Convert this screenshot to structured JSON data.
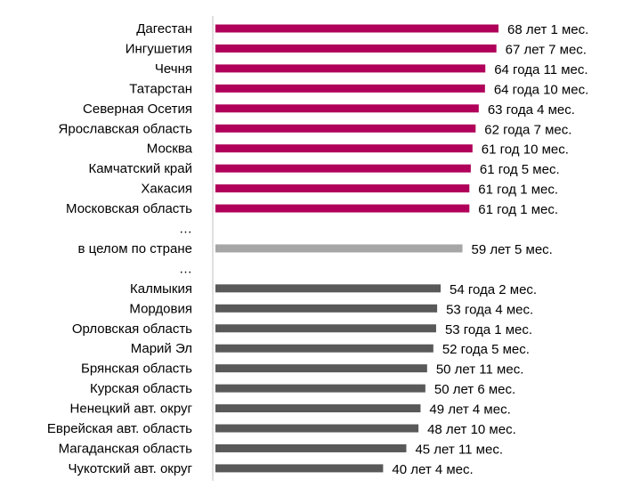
{
  "chart_data": {
    "type": "bar",
    "orientation": "horizontal",
    "grid": false,
    "value_unit": "years",
    "categories": [
      "Дагестан",
      "Ингушетия",
      "Чечня",
      "Татарстан",
      "Северная Осетия",
      "Ярославская область",
      "Москва",
      "Камчатский край",
      "Хакасия",
      "Московская область",
      "…",
      "в целом по стране",
      "…",
      "Калмыкия",
      "Мордовия",
      "Орловская область",
      "Марий Эл",
      "Брянская область",
      "Курская область",
      "Ненецкий авт. округ",
      "Еврейская авт. область",
      "Магаданская область",
      "Чукотский авт. округ"
    ],
    "values": [
      68.083,
      67.583,
      64.917,
      64.833,
      63.333,
      62.583,
      61.833,
      61.417,
      61.083,
      61.083,
      null,
      59.417,
      null,
      54.167,
      53.333,
      53.083,
      52.417,
      50.917,
      50.5,
      49.333,
      48.833,
      45.917,
      40.333
    ],
    "value_labels": [
      "68 лет 1 мес.",
      "67 лет 7 мес.",
      "64 года 11 мес.",
      "64 года 10 мес.",
      "63 года 4 мес.",
      "62 года 7 мес.",
      "61 год 10 мес.",
      "61 год 5 мес.",
      "61 год 1 мес.",
      "61 год 1 мес.",
      "",
      "59 лет 5 мес.",
      "",
      "54 года 2 мес.",
      "53 года 4 мес.",
      "53 года 1 мес.",
      "52 года 5 мес.",
      "50 лет 11 мес.",
      "50 лет 6 мес.",
      "49 лет 4 мес.",
      "48 лет 10 мес.",
      "45 лет 11 мес.",
      "40 лет 4 мес."
    ],
    "groups": [
      "top",
      "top",
      "top",
      "top",
      "top",
      "top",
      "top",
      "top",
      "top",
      "top",
      "gap",
      "country",
      "gap",
      "bottom",
      "bottom",
      "bottom",
      "bottom",
      "bottom",
      "bottom",
      "bottom",
      "bottom",
      "bottom",
      "bottom"
    ],
    "colors": {
      "top": "#b0005a",
      "country": "#a6a6a6",
      "bottom": "#595959",
      "axis": "#bfbfbf",
      "text": "#000000"
    },
    "xlim": [
      0,
      68.083
    ]
  }
}
